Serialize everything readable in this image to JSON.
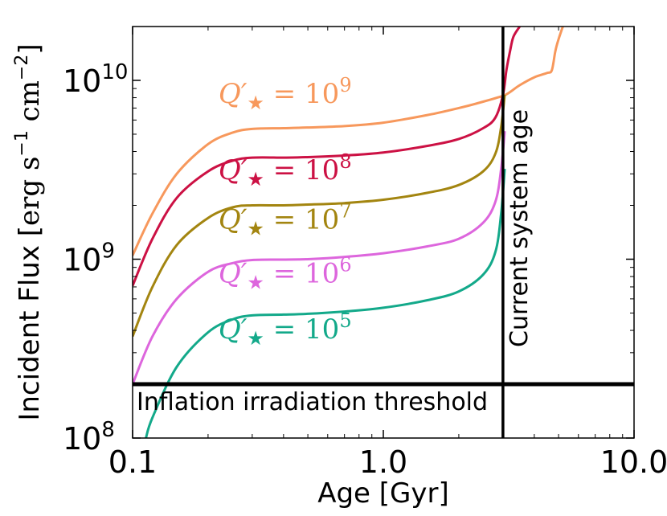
{
  "chart_data": {
    "type": "line",
    "xlabel": "Age [Gyr]",
    "ylabel": "Incident Flux [erg s⁻¹ cm⁻²]",
    "ylabel_parts": {
      "main": "Incident Flux [",
      "unit1": "erg s",
      "sup1": "−1",
      "unit2": " cm",
      "sup2": "−2",
      "close": "]"
    },
    "xscale": "log",
    "yscale": "log",
    "xlim": [
      0.1,
      10.0
    ],
    "ylim": [
      100000000.0,
      20000000000.0
    ],
    "x_ticks": [
      {
        "value": 0.1,
        "label": "0.1"
      },
      {
        "value": 1.0,
        "label": "1.0"
      },
      {
        "value": 10.0,
        "label": "10.0"
      }
    ],
    "y_ticks": [
      {
        "value": 100000000.0,
        "base": "10",
        "exp": "8"
      },
      {
        "value": 1000000000.0,
        "base": "10",
        "exp": "9"
      },
      {
        "value": 10000000000.0,
        "base": "10",
        "exp": "10"
      }
    ],
    "grid": false,
    "series": [
      {
        "name_parts": {
          "sym": "Q′",
          "star": "★",
          "eq": " = 10",
          "exp": "9"
        },
        "color": "#f7985c",
        "label_at": {
          "x": 0.22,
          "y": 7500000000.0
        },
        "x": [
          0.1,
          0.12,
          0.15,
          0.2,
          0.25,
          0.3,
          0.4,
          0.5,
          0.7,
          1.0,
          1.5,
          2.0,
          2.5,
          3.0,
          3.2,
          3.5,
          4.0,
          4.5,
          4.7,
          4.85,
          5.0,
          5.2
        ],
        "y": [
          1050000000.0,
          1800000000.0,
          3000000000.0,
          4400000000.0,
          5100000000.0,
          5350000000.0,
          5400000000.0,
          5450000000.0,
          5550000000.0,
          5800000000.0,
          6400000000.0,
          7000000000.0,
          7600000000.0,
          8200000000.0,
          8600000000.0,
          9400000000.0,
          10400000000.0,
          11000000000.0,
          11400000000.0,
          14500000000.0,
          17000000000.0,
          20000000000.0
        ]
      },
      {
        "name_parts": {
          "sym": "Q′",
          "star": "★",
          "eq": " = 10",
          "exp": "8"
        },
        "color": "#cc1144",
        "label_at": {
          "x": 0.22,
          "y": 2800000000.0
        },
        "x": [
          0.1,
          0.12,
          0.15,
          0.2,
          0.25,
          0.3,
          0.4,
          0.5,
          0.7,
          1.0,
          1.5,
          2.0,
          2.5,
          2.8,
          3.0,
          3.1,
          3.2,
          3.3,
          3.5
        ],
        "y": [
          710000000.0,
          1300000000.0,
          2200000000.0,
          3100000000.0,
          3550000000.0,
          3700000000.0,
          3700000000.0,
          3720000000.0,
          3800000000.0,
          3950000000.0,
          4300000000.0,
          4700000000.0,
          5400000000.0,
          6200000000.0,
          8300000000.0,
          11500000000.0,
          14500000000.0,
          17500000000.0,
          20000000000.0
        ]
      },
      {
        "name_parts": {
          "sym": "Q′",
          "star": "★",
          "eq": " = 10",
          "exp": "7"
        },
        "color": "#a38510",
        "label_at": {
          "x": 0.22,
          "y": 1480000000.0
        },
        "x": [
          0.1,
          0.12,
          0.15,
          0.2,
          0.25,
          0.3,
          0.4,
          0.5,
          0.7,
          1.0,
          1.5,
          2.0,
          2.5,
          2.8,
          2.95,
          3.05
        ],
        "y": [
          370000000.0,
          700000000.0,
          1200000000.0,
          1700000000.0,
          1950000000.0,
          2000000000.0,
          2000000000.0,
          2020000000.0,
          2060000000.0,
          2150000000.0,
          2350000000.0,
          2600000000.0,
          3100000000.0,
          3900000000.0,
          5500000000.0,
          8300000000.0
        ]
      },
      {
        "name_parts": {
          "sym": "Q′",
          "star": "★",
          "eq": " = 10",
          "exp": "6"
        },
        "color": "#dd66dd",
        "label_at": {
          "x": 0.22,
          "y": 740000000.0
        },
        "x": [
          0.1,
          0.12,
          0.15,
          0.2,
          0.25,
          0.3,
          0.4,
          0.5,
          0.7,
          1.0,
          1.5,
          2.0,
          2.5,
          2.8,
          2.95,
          3.05
        ],
        "y": [
          200000000.0,
          370000000.0,
          600000000.0,
          850000000.0,
          950000000.0,
          990000000.0,
          995000000.0,
          1000000000.0,
          1030000000.0,
          1080000000.0,
          1180000000.0,
          1300000000.0,
          1600000000.0,
          2100000000.0,
          3200000000.0,
          5200000000.0
        ]
      },
      {
        "name_parts": {
          "sym": "Q′",
          "star": "★",
          "eq": " = 10",
          "exp": "5"
        },
        "color": "#13a98a",
        "label_at": {
          "x": 0.22,
          "y": 360000000.0
        },
        "x": [
          0.113,
          0.12,
          0.15,
          0.2,
          0.25,
          0.3,
          0.4,
          0.5,
          0.7,
          1.0,
          1.5,
          2.0,
          2.5,
          2.8,
          2.95,
          3.05
        ],
        "y": [
          100000000.0,
          130000000.0,
          250000000.0,
          390000000.0,
          460000000.0,
          485000000.0,
          490000000.0,
          495000000.0,
          510000000.0,
          535000000.0,
          590000000.0,
          660000000.0,
          820000000.0,
          1100000000.0,
          1800000000.0,
          3200000000.0
        ]
      }
    ],
    "annotations": [
      {
        "type": "vline",
        "x": 3.0,
        "label": "Current system age"
      },
      {
        "type": "hline",
        "y": 200000000.0,
        "label": "Inflation irradiation threshold"
      }
    ]
  }
}
